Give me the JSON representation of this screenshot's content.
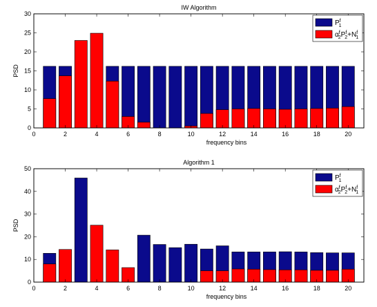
{
  "chart_data": [
    {
      "type": "bar",
      "title": "IW Algorithm",
      "xlabel": "frequency bins",
      "ylabel": "PSD",
      "xlim": [
        0,
        21
      ],
      "ylim": [
        0,
        30
      ],
      "xticks": [
        0,
        2,
        4,
        6,
        8,
        10,
        12,
        14,
        16,
        18,
        20
      ],
      "yticks": [
        0,
        5,
        10,
        15,
        20,
        25,
        30
      ],
      "grid": false,
      "legend_position": "top-right",
      "categories": [
        1,
        2,
        3,
        4,
        5,
        6,
        7,
        8,
        9,
        10,
        11,
        12,
        13,
        14,
        15,
        16,
        17,
        18,
        19,
        20
      ],
      "series": [
        {
          "color": "#0a0a8c",
          "values": [
            16.2,
            16.2,
            0,
            0,
            16.2,
            16.2,
            16.2,
            16.2,
            16.2,
            16.2,
            16.2,
            16.2,
            16.2,
            16.2,
            16.2,
            16.2,
            16.2,
            16.2,
            16.2,
            16.2
          ]
        },
        {
          "color": "#ff0000",
          "values": [
            7.7,
            13.7,
            23.0,
            24.9,
            12.3,
            3.0,
            1.5,
            0,
            0,
            0.5,
            3.8,
            4.8,
            5.0,
            5.1,
            5.0,
            4.9,
            5.0,
            5.1,
            5.2,
            5.6
          ]
        }
      ]
    },
    {
      "type": "bar",
      "title": "Algorithm 1",
      "xlabel": "frequency bins",
      "ylabel": "PSD",
      "xlim": [
        0,
        21
      ],
      "ylim": [
        0,
        50
      ],
      "xticks": [
        0,
        2,
        4,
        6,
        8,
        10,
        12,
        14,
        16,
        18,
        20
      ],
      "yticks": [
        0,
        10,
        20,
        30,
        40,
        50
      ],
      "grid": false,
      "legend_position": "top-right",
      "categories": [
        1,
        2,
        3,
        4,
        5,
        6,
        7,
        8,
        9,
        10,
        11,
        12,
        13,
        14,
        15,
        16,
        17,
        18,
        19,
        20
      ],
      "series": [
        {
          "color": "#0a0a8c",
          "values": [
            12.7,
            0,
            45.9,
            0,
            0,
            0,
            20.7,
            16.6,
            15.2,
            16.7,
            14.6,
            16.0,
            13.3,
            13.3,
            13.3,
            13.4,
            13.3,
            13.0,
            12.9,
            12.9
          ]
        },
        {
          "color": "#ff0000",
          "values": [
            8.0,
            14.4,
            0,
            25.1,
            14.2,
            6.4,
            0,
            0,
            0,
            0,
            5.0,
            5.0,
            5.8,
            5.7,
            5.5,
            5.4,
            5.4,
            5.2,
            5.2,
            5.7
          ]
        }
      ]
    }
  ]
}
